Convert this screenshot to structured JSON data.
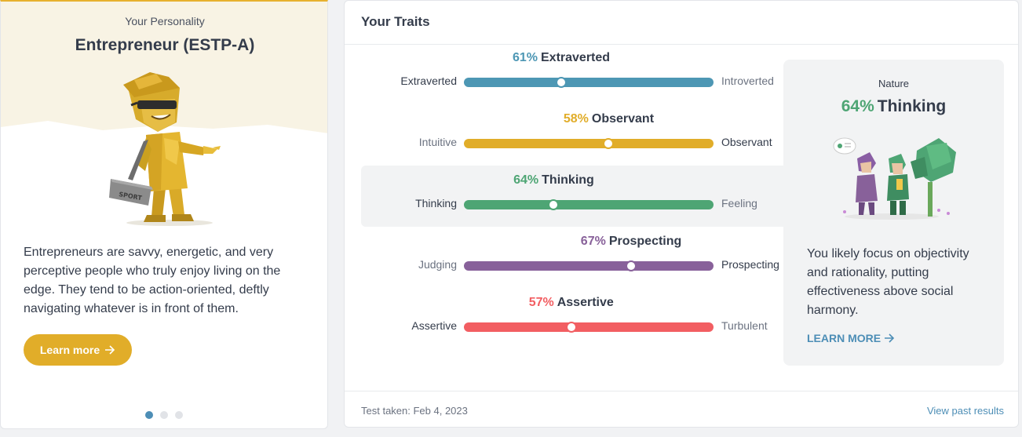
{
  "personality": {
    "label": "Your Personality",
    "title": "Entrepreneur (ESTP-A)",
    "description": "Entrepreneurs are savvy, energetic, and very perceptive people who truly enjoy living on the edge. They tend to be action-oriented, deftly navigating whatever is in front of them.",
    "button_label": "Learn more",
    "figure_bag_text": "SPORT",
    "accent_color": "#e1ad29",
    "carousel": {
      "count": 3,
      "active": 0
    }
  },
  "traits_panel": {
    "title": "Your Traits",
    "traits": [
      {
        "pct": "61%",
        "name": "Extraverted",
        "left": "Extraverted",
        "right": "Introverted",
        "value": 0.39,
        "color": "#4d97b4",
        "highlight": false,
        "dominant_side": "left"
      },
      {
        "pct": "58%",
        "name": "Observant",
        "left": "Intuitive",
        "right": "Observant",
        "value": 0.58,
        "color": "#e1ad29",
        "highlight": false,
        "dominant_side": "right"
      },
      {
        "pct": "64%",
        "name": "Thinking",
        "left": "Thinking",
        "right": "Feeling",
        "value": 0.36,
        "color": "#4ea574",
        "highlight": true,
        "dominant_side": "left"
      },
      {
        "pct": "67%",
        "name": "Prospecting",
        "left": "Judging",
        "right": "Prospecting",
        "value": 0.67,
        "color": "#88619a",
        "highlight": false,
        "dominant_side": "right"
      },
      {
        "pct": "57%",
        "name": "Assertive",
        "left": "Assertive",
        "right": "Turbulent",
        "value": 0.43,
        "color": "#f25e62",
        "highlight": false,
        "dominant_side": "left"
      }
    ],
    "nature": {
      "label": "Nature",
      "pct": "64%",
      "name": "Thinking",
      "description": "You likely focus on objectivity and rationality, putting effectiveness above social harmony.",
      "link_label": "LEARN MORE"
    },
    "footer": {
      "test_taken": "Test taken: Feb 4, 2023",
      "past_results": "View past results"
    }
  }
}
